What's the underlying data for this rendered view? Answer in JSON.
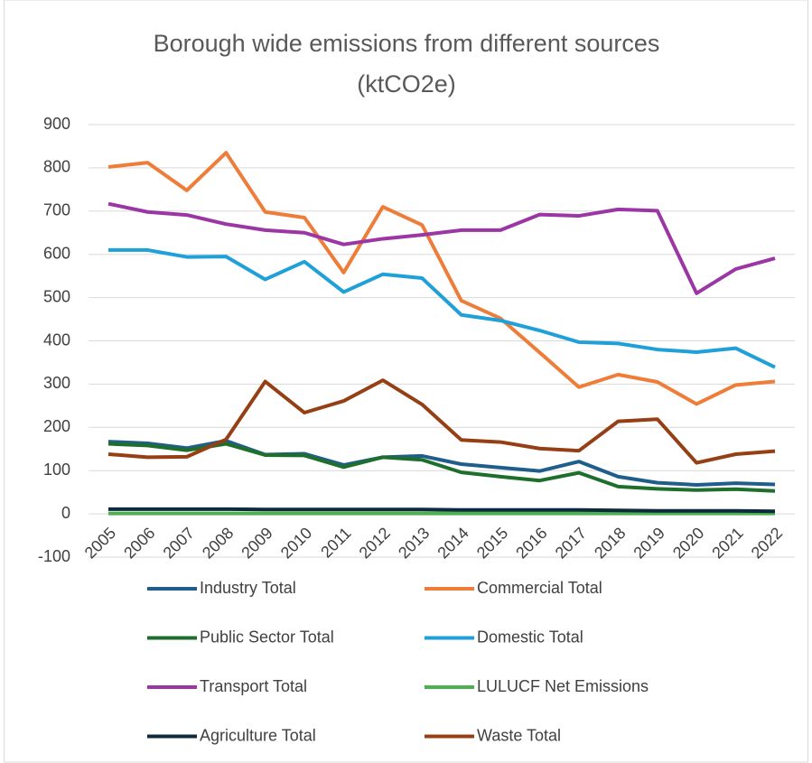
{
  "chart_data": {
    "type": "line",
    "title": [
      "Borough wide emissions from different sources",
      "(ktCO2e)"
    ],
    "categories": [
      "2005",
      "2006",
      "2007",
      "2008",
      "2009",
      "2010",
      "2011",
      "2012",
      "2013",
      "2014",
      "2015",
      "2016",
      "2017",
      "2018",
      "2019",
      "2020",
      "2021",
      "2022"
    ],
    "series": [
      {
        "name": "Industry Total",
        "color": "#1f5e8c",
        "values": [
          167,
          163,
          152,
          169,
          137,
          139,
          113,
          131,
          134,
          115,
          107,
          99,
          121,
          86,
          72,
          67,
          71,
          68
        ]
      },
      {
        "name": "Commercial Total",
        "color": "#ee7d3a",
        "values": [
          802,
          812,
          748,
          835,
          698,
          685,
          558,
          710,
          668,
          493,
          452,
          373,
          293,
          322,
          305,
          254,
          298,
          306
        ]
      },
      {
        "name": "Public Sector Total",
        "color": "#1e6e2c",
        "values": [
          162,
          158,
          147,
          162,
          136,
          135,
          108,
          131,
          125,
          96,
          86,
          77,
          95,
          63,
          58,
          55,
          57,
          53
        ]
      },
      {
        "name": "Domestic Total",
        "color": "#1fa0d8",
        "values": [
          610,
          610,
          594,
          595,
          542,
          583,
          513,
          554,
          545,
          460,
          447,
          424,
          397,
          394,
          380,
          374,
          383,
          339
        ]
      },
      {
        "name": "Transport Total",
        "color": "#9c36a5",
        "values": [
          717,
          698,
          691,
          670,
          656,
          650,
          623,
          636,
          645,
          656,
          656,
          692,
          689,
          704,
          701,
          510,
          566,
          591
        ]
      },
      {
        "name": "LULUCF Net Emissions",
        "color": "#4caf50",
        "values": [
          1,
          1,
          1,
          1,
          1,
          1,
          1,
          1,
          1,
          1,
          1,
          1,
          1,
          1,
          1,
          1,
          1,
          1
        ]
      },
      {
        "name": "Agriculture Total",
        "color": "#0e2a3d",
        "values": [
          11,
          11,
          11,
          11,
          10,
          10,
          10,
          10,
          10,
          9,
          9,
          9,
          9,
          8,
          7,
          7,
          7,
          6
        ]
      },
      {
        "name": "Waste Total",
        "color": "#973f14",
        "values": [
          138,
          131,
          132,
          172,
          306,
          234,
          261,
          309,
          253,
          171,
          166,
          151,
          146,
          214,
          219,
          118,
          138,
          145
        ]
      }
    ],
    "ylim": [
      -100,
      900
    ],
    "yticks": [
      -100,
      0,
      100,
      200,
      300,
      400,
      500,
      600,
      700,
      800,
      900
    ],
    "grid": true,
    "legend": "bottom"
  }
}
